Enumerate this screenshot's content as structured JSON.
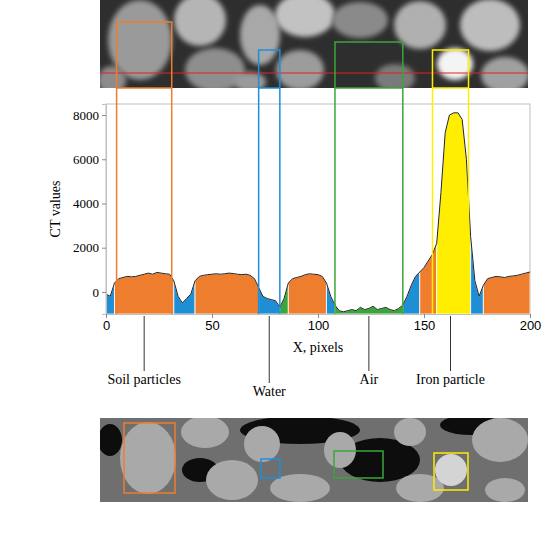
{
  "chart_data": {
    "type": "area",
    "x_label": "X, pixels",
    "y_label": "CT values",
    "xlim": [
      0,
      200
    ],
    "ylim": [
      -1000,
      8500
    ],
    "xticks": [
      0,
      50,
      100,
      150,
      200
    ],
    "yticks": [
      0,
      2000,
      4000,
      6000,
      8000
    ],
    "x": [
      0,
      2,
      4,
      6,
      8,
      10,
      12,
      14,
      16,
      18,
      20,
      22,
      24,
      26,
      28,
      30,
      32,
      34,
      36,
      38,
      40,
      42,
      44,
      46,
      48,
      50,
      52,
      54,
      56,
      58,
      60,
      62,
      64,
      66,
      68,
      70,
      72,
      74,
      76,
      78,
      80,
      82,
      84,
      86,
      88,
      90,
      92,
      94,
      96,
      98,
      100,
      102,
      104,
      106,
      108,
      110,
      112,
      114,
      116,
      118,
      120,
      122,
      124,
      126,
      128,
      130,
      132,
      134,
      136,
      138,
      140,
      142,
      144,
      146,
      148,
      150,
      152,
      154,
      156,
      158,
      160,
      162,
      164,
      166,
      168,
      170,
      172,
      174,
      176,
      178,
      180,
      182,
      184,
      186,
      188,
      190,
      192,
      194,
      196,
      198,
      200
    ],
    "values": [
      -100,
      -200,
      400,
      600,
      650,
      700,
      680,
      700,
      750,
      800,
      850,
      800,
      880,
      850,
      820,
      800,
      500,
      -200,
      -500,
      -300,
      -100,
      500,
      700,
      750,
      780,
      800,
      820,
      800,
      820,
      850,
      830,
      800,
      780,
      800,
      750,
      600,
      200,
      -200,
      -300,
      -350,
      -400,
      -700,
      -300,
      400,
      600,
      650,
      700,
      780,
      820,
      800,
      780,
      700,
      400,
      -200,
      -600,
      -850,
      -900,
      -850,
      -800,
      -850,
      -700,
      -800,
      -750,
      -650,
      -800,
      -750,
      -700,
      -800,
      -850,
      -750,
      -600,
      -200,
      300,
      700,
      900,
      1100,
      1400,
      1700,
      2200,
      4500,
      7200,
      8000,
      8100,
      8100,
      7800,
      6000,
      2500,
      500,
      -200,
      300,
      600,
      650,
      700,
      680,
      650,
      700,
      720,
      750,
      800,
      850,
      900
    ],
    "phases": [
      {
        "name": "Soil particles",
        "color": "#ef7d2e",
        "box": [
          5,
          31
        ]
      },
      {
        "name": "Water",
        "color": "#1e8fd5",
        "box": [
          72,
          82
        ]
      },
      {
        "name": "Air",
        "color": "#3aa63a",
        "box": [
          108,
          140
        ]
      },
      {
        "name": "Iron particle",
        "color": "#ffee00",
        "box": [
          154,
          171
        ]
      }
    ],
    "segments": [
      {
        "phase": "Water",
        "x": [
          0,
          4
        ]
      },
      {
        "phase": "Soil particles",
        "x": [
          4,
          32
        ]
      },
      {
        "phase": "Water",
        "x": [
          32,
          42
        ]
      },
      {
        "phase": "Soil particles",
        "x": [
          42,
          72
        ]
      },
      {
        "phase": "Water",
        "x": [
          72,
          82
        ]
      },
      {
        "phase": "Air",
        "x": [
          82,
          86
        ]
      },
      {
        "phase": "Soil particles",
        "x": [
          86,
          104
        ]
      },
      {
        "phase": "Water",
        "x": [
          104,
          108
        ]
      },
      {
        "phase": "Air",
        "x": [
          108,
          140
        ]
      },
      {
        "phase": "Water",
        "x": [
          140,
          148
        ]
      },
      {
        "phase": "Soil particles",
        "x": [
          148,
          156
        ]
      },
      {
        "phase": "Iron particle",
        "x": [
          156,
          172
        ]
      },
      {
        "phase": "Water",
        "x": [
          172,
          178
        ]
      },
      {
        "phase": "Soil particles",
        "x": [
          178,
          200
        ]
      }
    ]
  }
}
